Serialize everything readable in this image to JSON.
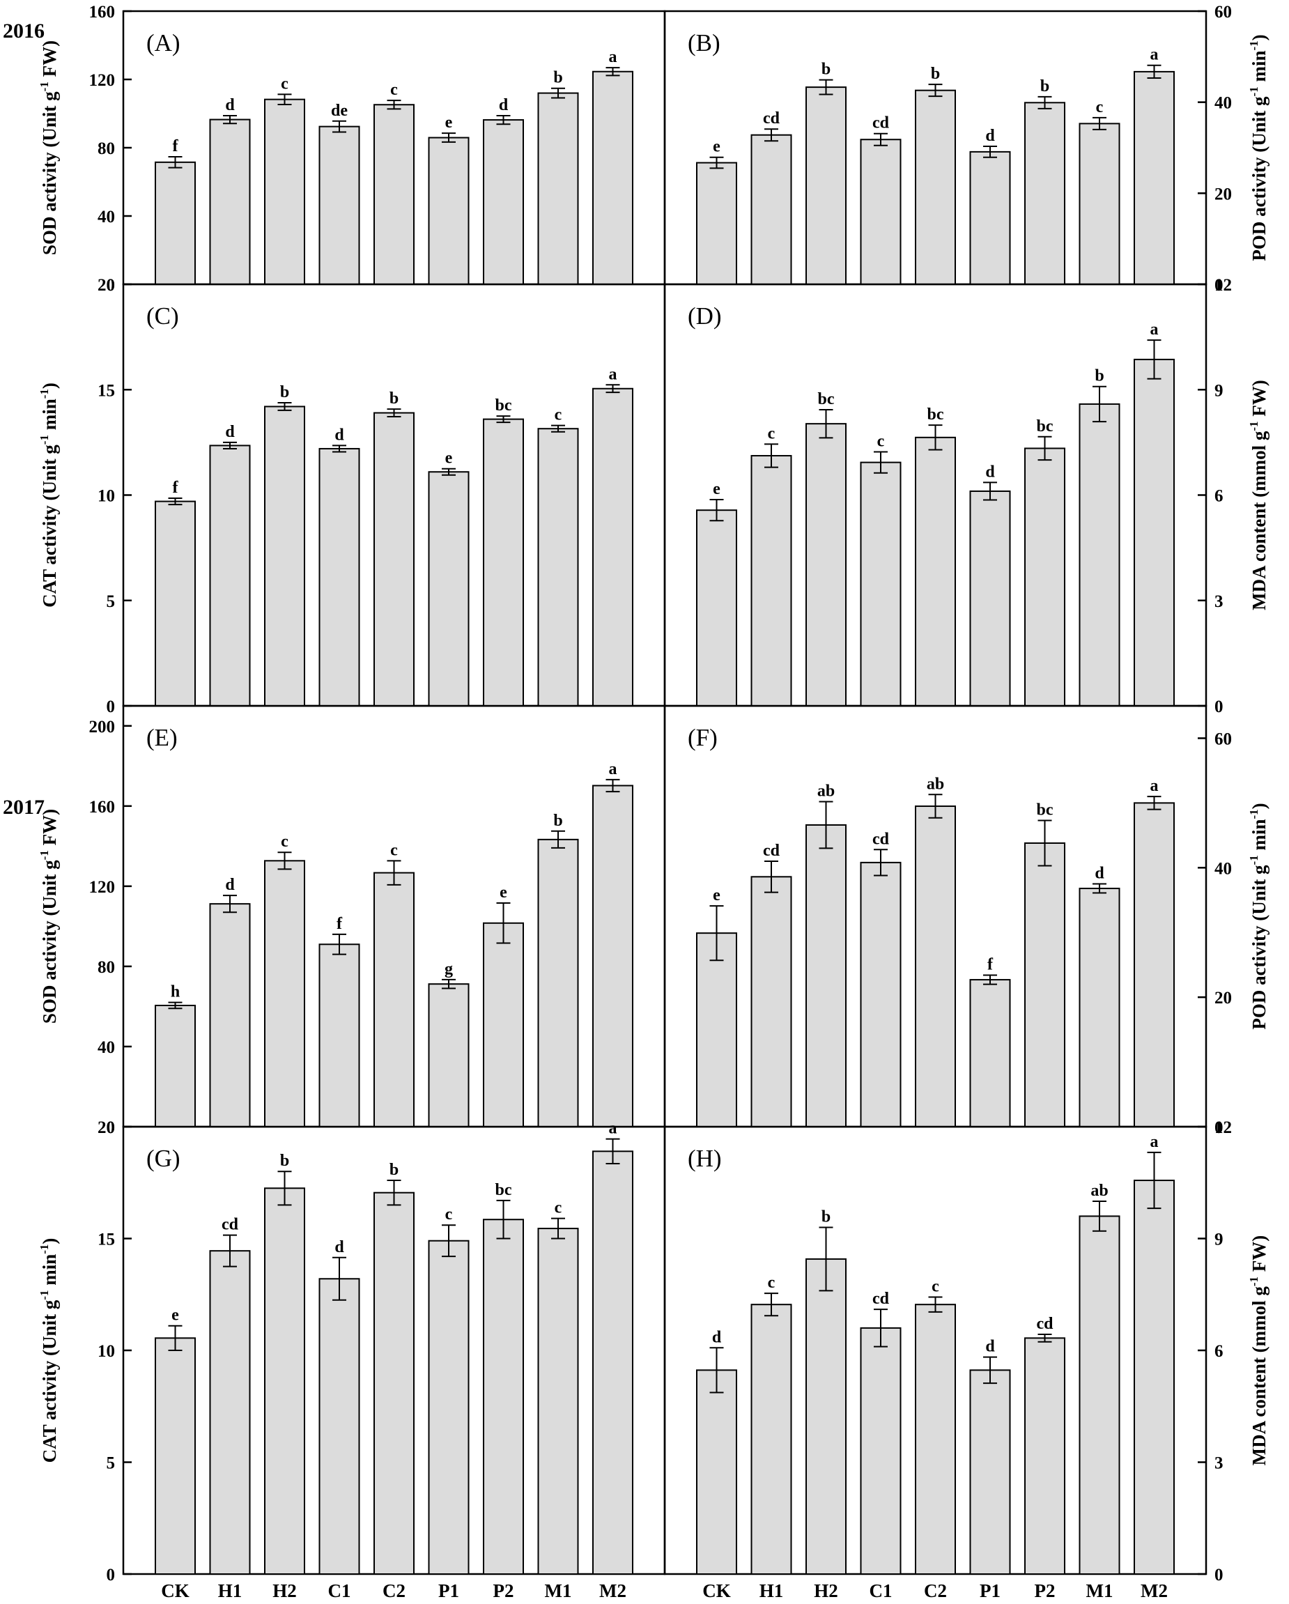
{
  "figure": {
    "years": [
      "2016",
      "2017"
    ],
    "categories": [
      "CK",
      "H1",
      "H2",
      "C1",
      "C2",
      "P1",
      "P2",
      "M1",
      "M2"
    ]
  },
  "chart_data": [
    {
      "type": "bar",
      "panel": "(A)",
      "year": "2016",
      "categories": [
        "CK",
        "H1",
        "H2",
        "C1",
        "C2",
        "P1",
        "P2",
        "M1",
        "M2"
      ],
      "values": [
        71.5,
        96.5,
        108.3,
        92.4,
        105.2,
        85.9,
        96.3,
        112.0,
        124.6
      ],
      "errors": [
        3.2,
        2.3,
        3.0,
        3.2,
        2.5,
        2.6,
        2.5,
        2.8,
        2.3
      ],
      "letters": [
        "f",
        "d",
        "c",
        "de",
        "c",
        "e",
        "d",
        "b",
        "a"
      ],
      "ylabel": {
        "pre": "SOD activity (Unit g",
        "sup": "-1",
        "post": " FW)"
      },
      "ylim": [
        0,
        160
      ],
      "yticks": [
        0,
        40,
        80,
        120,
        160
      ],
      "axis_side": "left"
    },
    {
      "type": "bar",
      "panel": "(B)",
      "year": "2016",
      "categories": [
        "CK",
        "H1",
        "H2",
        "C1",
        "C2",
        "P1",
        "P2",
        "M1",
        "M2"
      ],
      "values": [
        26.7,
        32.8,
        43.3,
        31.8,
        42.6,
        29.1,
        39.9,
        35.3,
        46.7
      ],
      "errors": [
        1.2,
        1.3,
        1.6,
        1.3,
        1.3,
        1.2,
        1.3,
        1.3,
        1.4
      ],
      "letters": [
        "e",
        "cd",
        "b",
        "cd",
        "b",
        "d",
        "b",
        "c",
        "a"
      ],
      "ylabel": {
        "pre": "POD activity (Unit g",
        "sup": "-1",
        "mid": " min",
        "sup2": "-1",
        "post": ")"
      },
      "ylim": [
        0,
        60
      ],
      "yticks": [
        0,
        20,
        40,
        60
      ],
      "axis_side": "right"
    },
    {
      "type": "bar",
      "panel": "(C)",
      "year": "2016",
      "categories": [
        "CK",
        "H1",
        "H2",
        "C1",
        "C2",
        "P1",
        "P2",
        "M1",
        "M2"
      ],
      "values": [
        9.7,
        12.35,
        14.2,
        12.2,
        13.9,
        11.1,
        13.6,
        13.15,
        15.05
      ],
      "errors": [
        0.15,
        0.15,
        0.18,
        0.15,
        0.18,
        0.15,
        0.15,
        0.15,
        0.18
      ],
      "letters": [
        "f",
        "d",
        "b",
        "d",
        "b",
        "e",
        "bc",
        "c",
        "a"
      ],
      "ylabel": {
        "pre": "CAT activity (Unit g",
        "sup": "-1",
        "mid": " min",
        "sup2": "-1",
        "post": ")"
      },
      "ylim": [
        0,
        20
      ],
      "yticks": [
        0,
        5,
        10,
        15,
        20
      ],
      "axis_side": "left"
    },
    {
      "type": "bar",
      "panel": "(D)",
      "year": "2016",
      "categories": [
        "CK",
        "H1",
        "H2",
        "C1",
        "C2",
        "P1",
        "P2",
        "M1",
        "M2"
      ],
      "values": [
        5.57,
        7.12,
        8.03,
        6.93,
        7.64,
        6.11,
        7.33,
        8.59,
        9.86
      ],
      "errors": [
        0.3,
        0.33,
        0.4,
        0.3,
        0.35,
        0.25,
        0.33,
        0.5,
        0.55
      ],
      "letters": [
        "e",
        "c",
        "bc",
        "c",
        "bc",
        "d",
        "bc",
        "b",
        "a"
      ],
      "ylabel": {
        "pre": "MDA content (mmol g",
        "sup": "-1",
        "post": " FW)"
      },
      "ylim": [
        0,
        12
      ],
      "yticks": [
        0,
        3,
        6,
        9,
        12
      ],
      "axis_side": "right"
    },
    {
      "type": "bar",
      "panel": "(E)",
      "year": "2017",
      "categories": [
        "CK",
        "H1",
        "H2",
        "C1",
        "C2",
        "P1",
        "P2",
        "M1",
        "M2"
      ],
      "values": [
        60.5,
        111.2,
        132.7,
        91.0,
        126.7,
        71.2,
        101.6,
        143.3,
        170.2
      ],
      "errors": [
        1.5,
        4.2,
        4.2,
        5.0,
        6.0,
        2.2,
        10.0,
        4.2,
        3.0
      ],
      "letters": [
        "h",
        "d",
        "c",
        "f",
        "c",
        "g",
        "e",
        "b",
        "a"
      ],
      "ylabel": {
        "pre": "SOD activity (Unit g",
        "sup": "-1",
        "post": " FW)"
      },
      "ylim": [
        0,
        210
      ],
      "yticks": [
        0,
        40,
        80,
        120,
        160,
        200
      ],
      "axis_side": "left"
    },
    {
      "type": "bar",
      "panel": "(F)",
      "year": "2017",
      "categories": [
        "CK",
        "H1",
        "H2",
        "C1",
        "C2",
        "P1",
        "P2",
        "M1",
        "M2"
      ],
      "values": [
        29.9,
        38.6,
        46.6,
        40.8,
        49.5,
        22.7,
        43.8,
        36.8,
        50.0
      ],
      "errors": [
        4.2,
        2.4,
        3.6,
        2.0,
        1.8,
        0.7,
        3.5,
        0.7,
        1.0
      ],
      "letters": [
        "e",
        "cd",
        "ab",
        "cd",
        "ab",
        "f",
        "bc",
        "d",
        "a"
      ],
      "ylabel": {
        "pre": "POD activity (Unit g",
        "sup": "-1",
        "mid": " min",
        "sup2": "-1",
        "post": ")"
      },
      "ylim": [
        0,
        65
      ],
      "yticks": [
        0,
        20,
        40,
        60
      ],
      "axis_side": "right"
    },
    {
      "type": "bar",
      "panel": "(G)",
      "year": "2017",
      "categories": [
        "CK",
        "H1",
        "H2",
        "C1",
        "C2",
        "P1",
        "P2",
        "M1",
        "M2"
      ],
      "values": [
        10.55,
        14.45,
        17.25,
        13.2,
        17.05,
        14.9,
        15.85,
        15.45,
        18.9
      ],
      "errors": [
        0.55,
        0.7,
        0.75,
        0.95,
        0.55,
        0.7,
        0.85,
        0.45,
        0.55
      ],
      "letters": [
        "e",
        "cd",
        "b",
        "d",
        "b",
        "c",
        "bc",
        "c",
        "a"
      ],
      "ylabel": {
        "pre": "CAT activity (Unit g",
        "sup": "-1",
        "mid": " min",
        "sup2": "-1",
        "post": ")"
      },
      "ylim": [
        0,
        20
      ],
      "yticks": [
        0,
        5,
        10,
        15,
        20
      ],
      "axis_side": "left"
    },
    {
      "type": "bar",
      "panel": "(H)",
      "year": "2017",
      "categories": [
        "CK",
        "H1",
        "H2",
        "C1",
        "C2",
        "P1",
        "P2",
        "M1",
        "M2"
      ],
      "values": [
        5.47,
        7.23,
        8.45,
        6.6,
        7.23,
        5.47,
        6.33,
        9.6,
        10.56
      ],
      "errors": [
        0.6,
        0.3,
        0.85,
        0.5,
        0.2,
        0.35,
        0.1,
        0.4,
        0.75
      ],
      "letters": [
        "d",
        "c",
        "b",
        "cd",
        "c",
        "d",
        "cd",
        "ab",
        "a"
      ],
      "ylabel": {
        "pre": "MDA content (mmol g",
        "sup": "-1",
        "post": " FW)"
      },
      "ylim": [
        0,
        12
      ],
      "yticks": [
        0,
        3,
        6,
        9,
        12
      ],
      "axis_side": "right"
    }
  ]
}
